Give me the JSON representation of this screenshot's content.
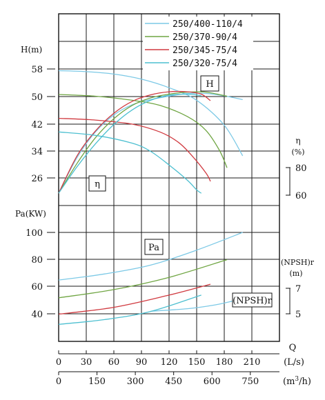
{
  "chart_data": {
    "type": "line",
    "legend": {
      "placement": "top-right",
      "entries": [
        "250/400-110/4",
        "250/370-90/4",
        "250/345-75/4",
        "250/320-75/4"
      ]
    },
    "colors": {
      "250/400-110/4": "#7cc9e6",
      "250/370-90/4": "#6fa542",
      "250/345-75/4": "#d0393f",
      "250/320-75/4": "#4cbfd0",
      "grid": "#1a1a1a"
    },
    "head_axis": {
      "label_top": "H(m)",
      "ticks": [
        "58",
        "50",
        "42",
        "34",
        "26"
      ],
      "range": [
        18,
        66
      ]
    },
    "power_axis": {
      "label_top": "Pa(KW)",
      "ticks": [
        "100",
        "80",
        "60",
        "40"
      ],
      "range": [
        20,
        120
      ]
    },
    "eff_axis": {
      "label": "η",
      "unit": "(%)",
      "ticks": [
        "80",
        "60"
      ]
    },
    "npsh_axis": {
      "label": "(NPSH)r",
      "unit": "(m)",
      "ticks": [
        "7",
        "5"
      ]
    },
    "x_axis": {
      "label": "Q",
      "ticks": [
        "0",
        "30",
        "60",
        "90",
        "120",
        "150",
        "180",
        "210"
      ],
      "unit": "(L/s)",
      "range": [
        0,
        240
      ]
    },
    "x_axis_m3h": {
      "ticks": [
        "0",
        "150",
        "300",
        "450",
        "600",
        "750"
      ],
      "unit_main": "(m",
      "unit_sup": "3",
      "unit_end": "/h)"
    },
    "boxes": {
      "head": "H",
      "eff": "η",
      "power": "Pa",
      "npsh": "(NPSH)r"
    },
    "series": [
      {
        "name": "250/400-110/4",
        "head": {
          "x": [
            0,
            30,
            60,
            90,
            120,
            150,
            180,
            200
          ],
          "y": [
            57.5,
            57.2,
            56.5,
            55,
            52.5,
            48.8,
            41.5,
            32.5
          ]
        },
        "eff": {
          "x": [
            0,
            20,
            40,
            60,
            80,
            100,
            120,
            140,
            160,
            180,
            200
          ],
          "y": [
            21.5,
            32,
            39.5,
            44.5,
            47.5,
            49,
            50,
            50.8,
            50.8,
            50.1,
            49
          ]
        },
        "power": {
          "x": [
            0,
            50,
            100,
            150,
            200
          ],
          "y": [
            65,
            69.5,
            76,
            87,
            100
          ]
        },
        "npsh": {
          "x": [
            100,
            140,
            170,
            195
          ],
          "y": [
            5.2,
            5.4,
            5.7,
            6.1
          ]
        }
      },
      {
        "name": "250/370-90/4",
        "head": {
          "x": [
            0,
            40,
            80,
            110,
            140,
            160,
            175,
            183
          ],
          "y": [
            50.5,
            50,
            48.8,
            47.3,
            44,
            40,
            34,
            29
          ]
        },
        "eff": {
          "x": [
            0,
            20,
            40,
            60,
            80,
            100,
            120,
            140,
            160,
            183
          ],
          "y": [
            21.5,
            30.3,
            37.8,
            43.4,
            47.3,
            49.5,
            50.6,
            51.2,
            51.2,
            50
          ]
        },
        "power": {
          "x": [
            0,
            60,
            120,
            183
          ],
          "y": [
            52,
            58,
            67,
            80
          ]
        }
      },
      {
        "name": "250/345-75/4",
        "head": {
          "x": [
            0,
            40,
            80,
            110,
            130,
            145,
            160,
            165
          ],
          "y": [
            43.5,
            43,
            41.8,
            39.5,
            36.5,
            32.5,
            27.5,
            25
          ]
        },
        "eff": {
          "x": [
            0,
            20,
            40,
            60,
            80,
            100,
            120,
            140,
            155,
            165
          ],
          "y": [
            21.5,
            32.5,
            39.8,
            45,
            48.5,
            50.4,
            51.3,
            51.3,
            50.6,
            48.7
          ]
        },
        "power": {
          "x": [
            0,
            60,
            120,
            165
          ],
          "y": [
            40,
            45,
            54,
            62
          ]
        }
      },
      {
        "name": "250/320-75/4",
        "head": {
          "x": [
            0,
            40,
            80,
            100,
            120,
            140,
            150,
            155
          ],
          "y": [
            39.5,
            38.5,
            36.2,
            33.8,
            29.8,
            25.3,
            22.5,
            21.5
          ]
        },
        "eff": {
          "x": [
            0,
            20,
            40,
            60,
            80,
            100,
            120,
            140,
            155
          ],
          "y": [
            21.5,
            29.3,
            36,
            41.7,
            46,
            48.8,
            50.3,
            50.6,
            50.2
          ]
        },
        "power": {
          "x": [
            0,
            50,
            100,
            155
          ],
          "y": [
            32.5,
            36,
            42,
            54
          ]
        }
      }
    ]
  }
}
